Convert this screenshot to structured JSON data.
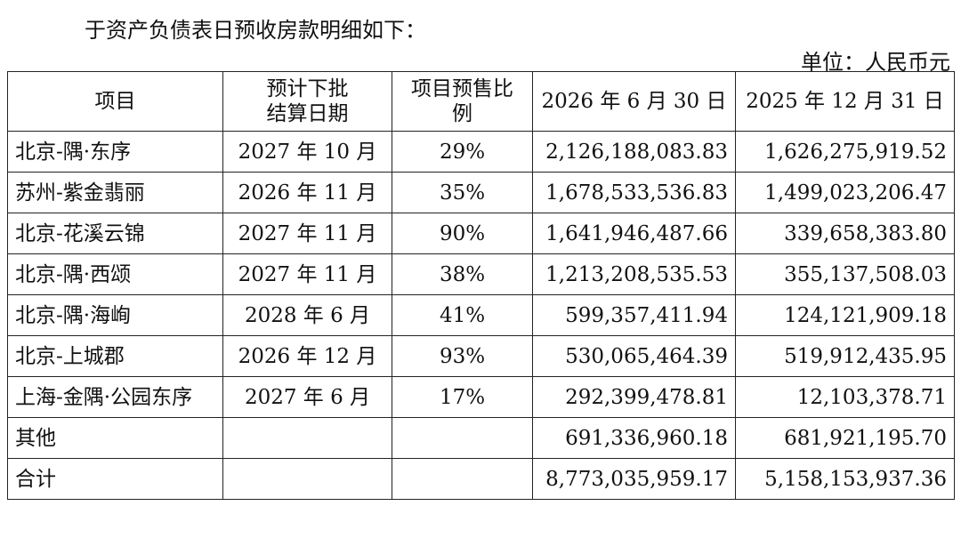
{
  "intro": "于资产负债表日预收房款明细如下：",
  "unit": "单位：人民币元",
  "table": {
    "header": [
      "项目",
      "预计下批结算日期",
      "项目预售比例",
      "2026 年 6 月 30 日",
      "2025 年 12 月 31 日"
    ],
    "rows": [
      [
        "北京-隅·东序",
        "2027 年 10 月",
        "29%",
        "2,126,188,083.83",
        "1,626,275,919.52"
      ],
      [
        "苏州-紫金翡丽",
        "2026 年 11 月",
        "35%",
        "1,678,533,536.83",
        "1,499,023,206.47"
      ],
      [
        "北京-花溪云锦",
        "2027 年 11 月",
        "90%",
        "1,641,946,487.66",
        "339,658,383.80"
      ],
      [
        "北京-隅·西颂",
        "2027 年 11 月",
        "38%",
        "1,213,208,535.53",
        "355,137,508.03"
      ],
      [
        "北京-隅·海峋",
        "2028 年 6 月",
        "41%",
        "599,357,411.94",
        "124,121,909.18"
      ],
      [
        "北京-上城郡",
        "2026 年 12 月",
        "93%",
        "530,065,464.39",
        "519,912,435.95"
      ],
      [
        "上海-金隅·公园东序",
        "2027 年 6 月",
        "17%",
        "292,399,478.81",
        "12,103,378.71"
      ],
      [
        "其他",
        null,
        null,
        "691,336,960.18",
        "681,921,195.70"
      ],
      [
        "合计",
        null,
        null,
        "8,773,035,959.17",
        "5,158,153,937.36"
      ]
    ]
  }
}
